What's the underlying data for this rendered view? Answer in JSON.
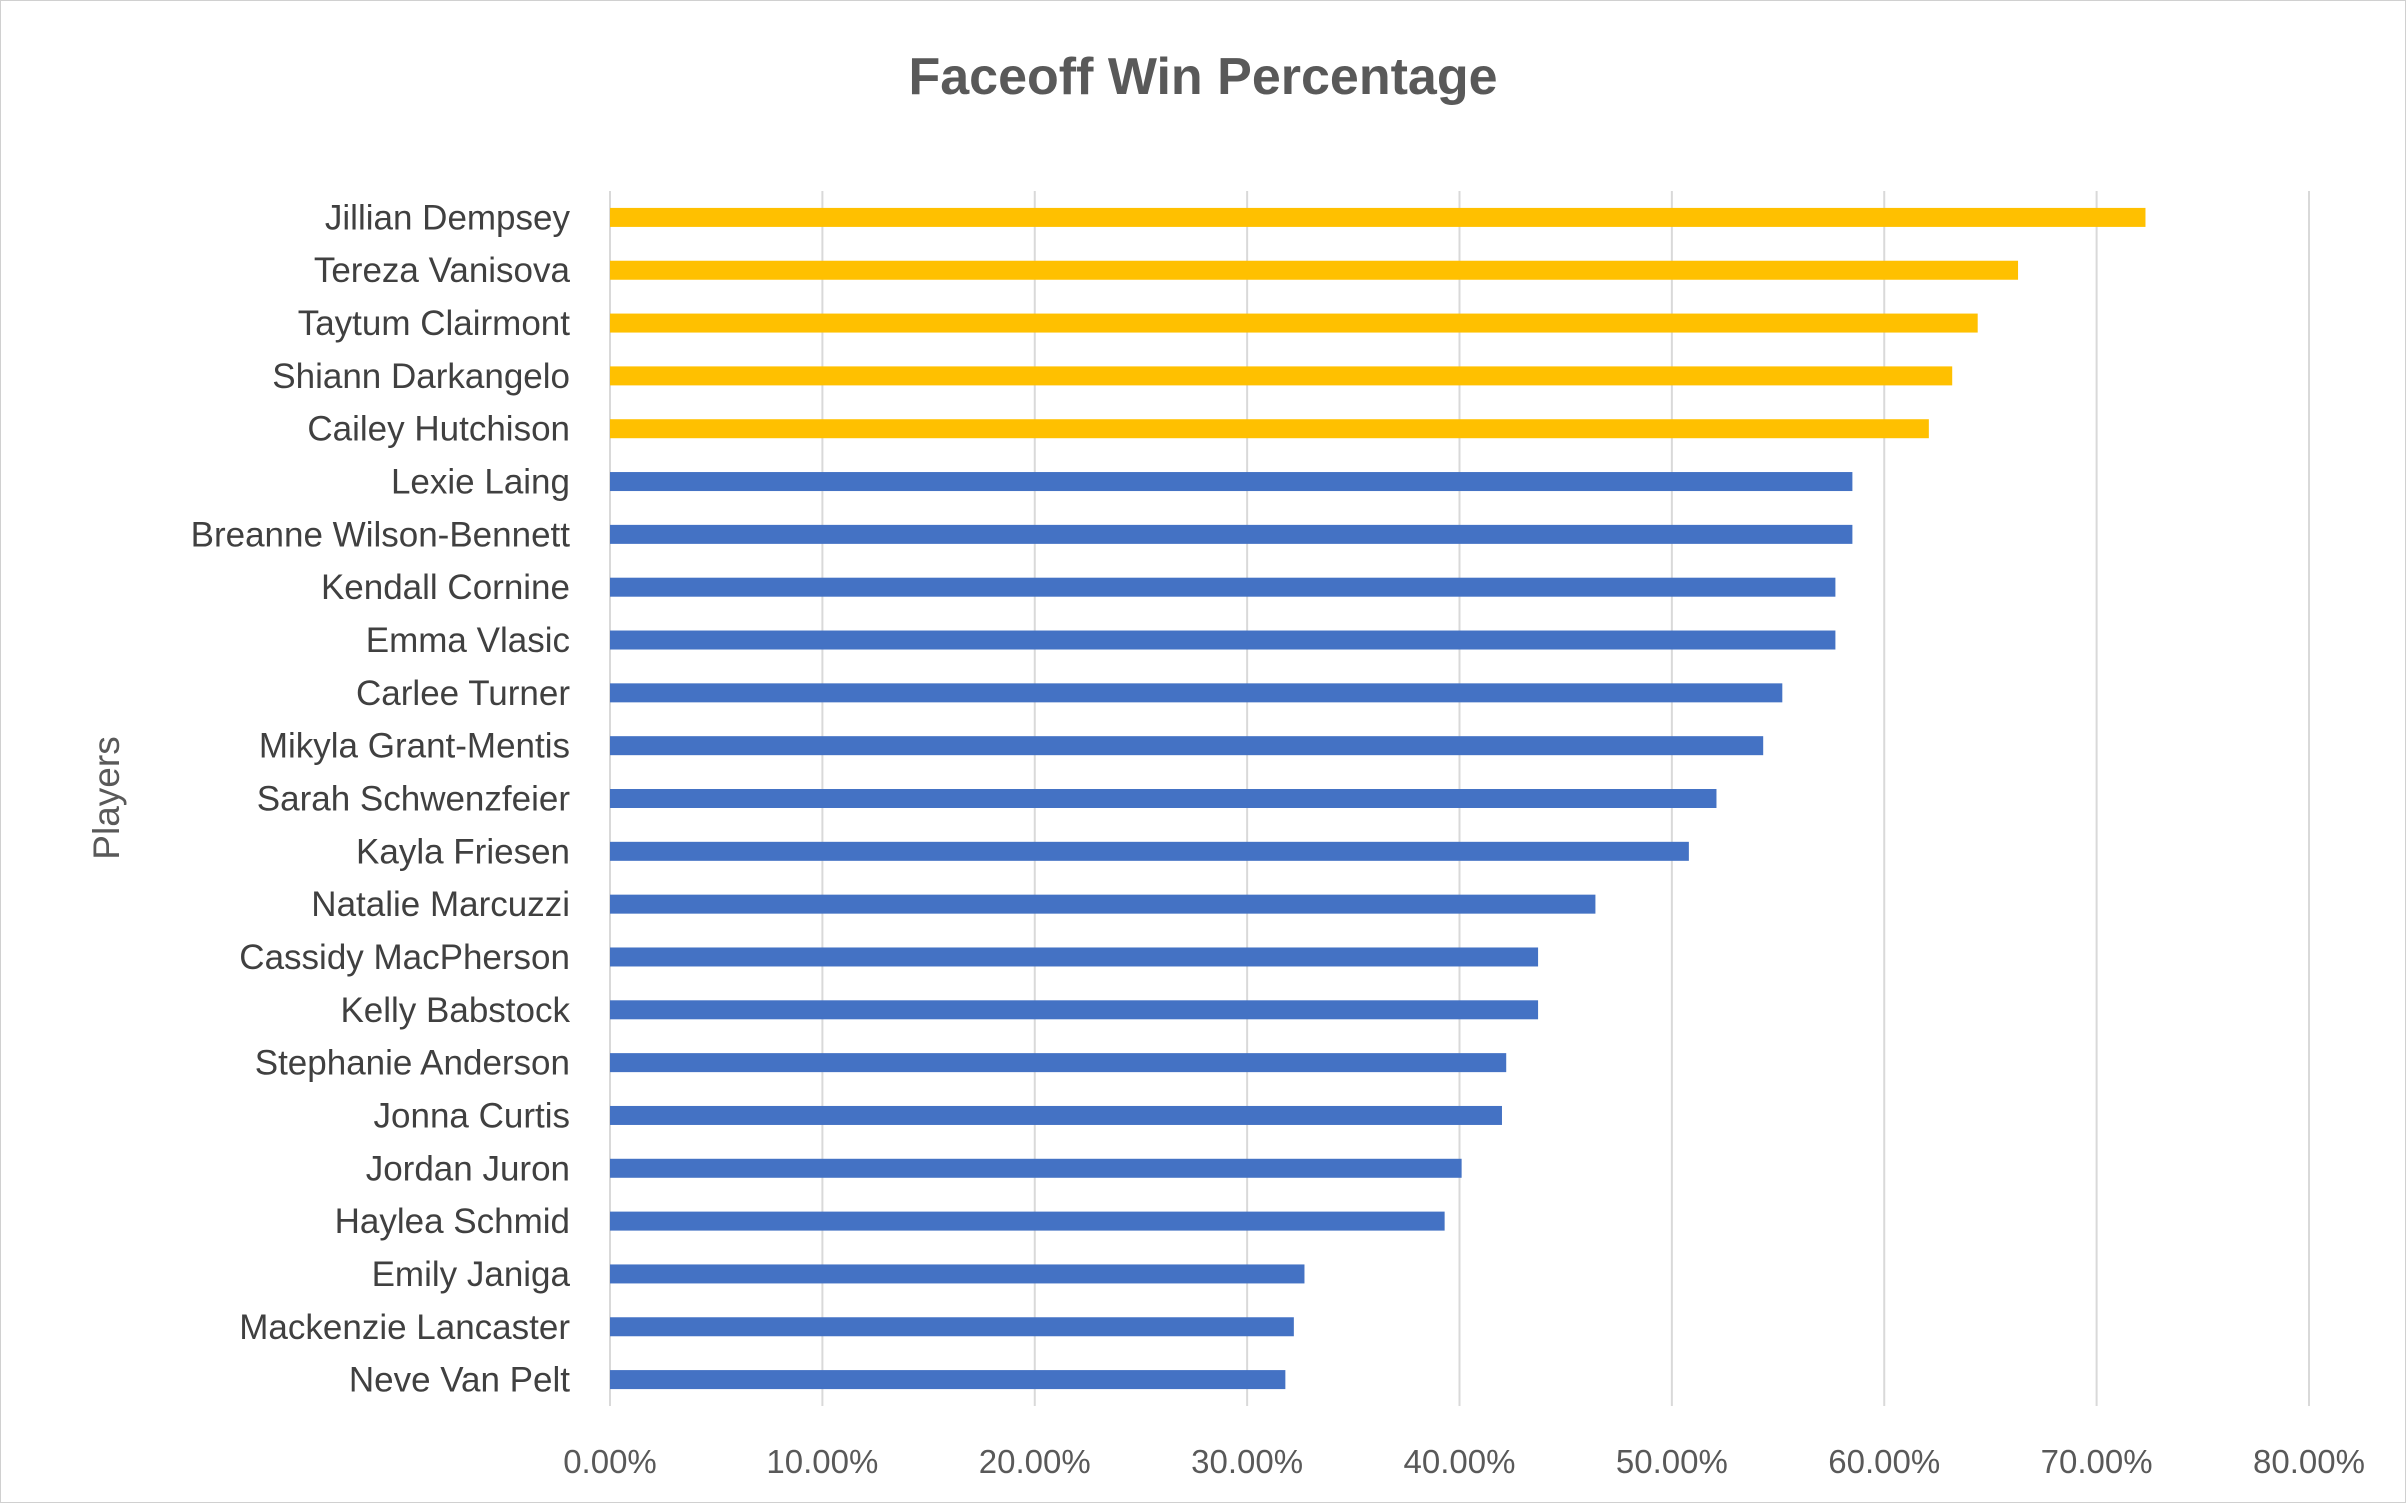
{
  "chart_data": {
    "type": "bar",
    "orientation": "horizontal",
    "title": "Faceoff Win Percentage",
    "ylabel": "Players",
    "xlabel": "",
    "xlim": [
      0,
      0.8
    ],
    "x_ticks": [
      0,
      0.1,
      0.2,
      0.3,
      0.4,
      0.5,
      0.6,
      0.7,
      0.8
    ],
    "x_tick_labels": [
      "0.00%",
      "10.00%",
      "20.00%",
      "30.00%",
      "40.00%",
      "50.00%",
      "60.00%",
      "70.00%",
      "80.00%"
    ],
    "grid": true,
    "legend": "none",
    "colors": {
      "highlight": "#FFC000",
      "default": "#4472C4",
      "grid": "#D9D9D9"
    },
    "categories": [
      "Jillian Dempsey",
      "Tereza Vanisova",
      "Taytum Clairmont",
      "Shiann Darkangelo",
      "Cailey Hutchison",
      "Lexie Laing",
      "Breanne Wilson-Bennett",
      "Kendall Cornine",
      "Emma Vlasic",
      "Carlee Turner",
      "Mikyla Grant-Mentis",
      "Sarah Schwenzfeier",
      "Kayla Friesen",
      "Natalie Marcuzzi",
      "Cassidy MacPherson",
      "Kelly Babstock",
      "Stephanie Anderson",
      "Jonna Curtis",
      "Jordan Juron",
      "Haylea Schmid",
      "Emily Janiga",
      "Mackenzie Lancaster",
      "Neve Van Pelt"
    ],
    "values": [
      0.723,
      0.663,
      0.644,
      0.632,
      0.621,
      0.585,
      0.585,
      0.577,
      0.577,
      0.552,
      0.543,
      0.521,
      0.508,
      0.464,
      0.437,
      0.437,
      0.422,
      0.42,
      0.401,
      0.393,
      0.327,
      0.322,
      0.318
    ],
    "highlighted": [
      true,
      true,
      true,
      true,
      true,
      false,
      false,
      false,
      false,
      false,
      false,
      false,
      false,
      false,
      false,
      false,
      false,
      false,
      false,
      false,
      false,
      false,
      false
    ]
  }
}
